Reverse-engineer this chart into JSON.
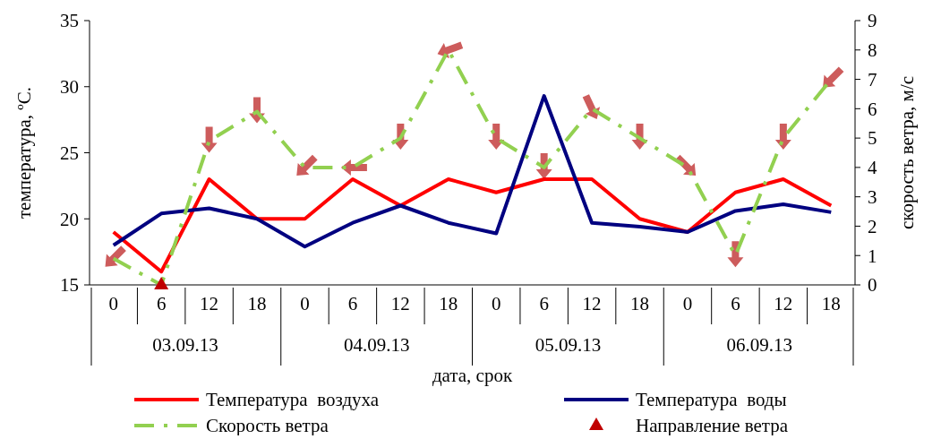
{
  "chart_data": {
    "type": "line",
    "xlabel": "дата, срок",
    "ylabel": "температура, ºС.",
    "y2label": "скорость ветра, м/с",
    "categories": [
      "0",
      "6",
      "12",
      "18",
      "0",
      "6",
      "12",
      "18",
      "0",
      "6",
      "12",
      "18",
      "0",
      "6",
      "12",
      "18"
    ],
    "annotations": [
      "03.09.13",
      "04.09.13",
      "05.09.13",
      "06.09.13"
    ],
    "ylim": [
      15,
      35
    ],
    "yticks": [
      15,
      20,
      25,
      30,
      35
    ],
    "y2lim": [
      0,
      9
    ],
    "y2ticks": [
      0,
      1,
      2,
      3,
      4,
      5,
      6,
      7,
      8,
      9
    ],
    "grid": false,
    "legend": "bottom",
    "marker": "none",
    "series": [
      {
        "name": "Температура  воздуха",
        "color": "#ff0000",
        "line_style": "solid",
        "values": [
          19,
          16,
          23,
          20,
          20,
          23,
          21,
          23,
          22,
          23,
          23,
          20,
          19,
          22,
          23,
          21
        ]
      },
      {
        "name": "Температура  воды",
        "color": "#000080",
        "line_style": "solid",
        "values": [
          18,
          20.4,
          20.8,
          20,
          17.9,
          19.7,
          21,
          19.7,
          18.9,
          29.3,
          19.7,
          19.4,
          19,
          20.6,
          21.1,
          20.5
        ]
      },
      {
        "name": "Скорость ветра",
        "color": "#92d050",
        "line_style": "dashed",
        "axis": "y2",
        "values": [
          0.9,
          0,
          4.9,
          5.9,
          4,
          4,
          5,
          8,
          5,
          4,
          6,
          5,
          4,
          1,
          5,
          7
        ]
      },
      {
        "name": "Направление ветра",
        "type": "scatter",
        "marker": "triangle",
        "color": "#c00000",
        "axis": "y2",
        "values": [
          null,
          0,
          null,
          null,
          null,
          null,
          null,
          null,
          null,
          null,
          null,
          null,
          null,
          null,
          null,
          null
        ]
      }
    ]
  }
}
